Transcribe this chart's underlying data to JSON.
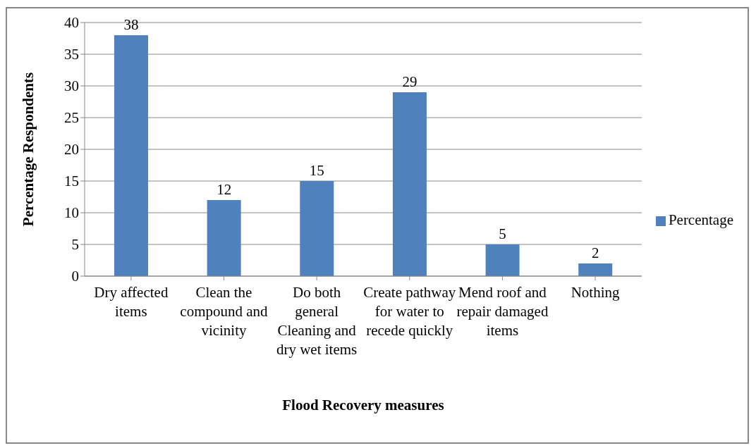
{
  "chart_data": {
    "type": "bar",
    "xlabel": "Flood Recovery measures",
    "ylabel": "Percentage Respondents",
    "categories": [
      "Dry affected items",
      "Clean the compound and vicinity",
      "Do both general Cleaning and dry wet items",
      "Create pathway for water to recede quickly",
      "Mend roof and repair damaged items",
      "Nothing"
    ],
    "series": [
      {
        "name": "Percentage",
        "color": "#4f81bd",
        "values": [
          38,
          12,
          15,
          29,
          5,
          2
        ]
      }
    ],
    "ylim": [
      0,
      40
    ],
    "yticks": [
      0,
      5,
      10,
      15,
      20,
      25,
      30,
      35,
      40
    ],
    "grid": "y",
    "legend": "right",
    "data_labels": true
  }
}
